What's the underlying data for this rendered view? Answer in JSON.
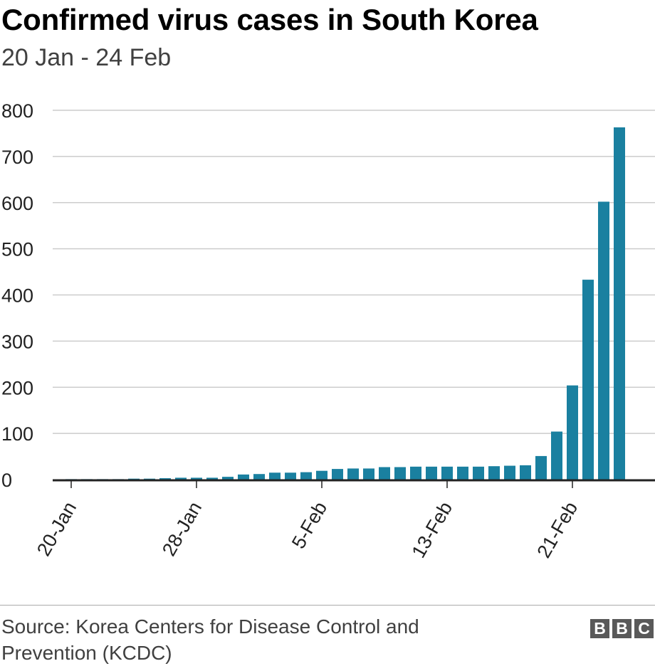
{
  "header": {
    "title": "Confirmed virus cases in South Korea",
    "subtitle": "20 Jan - 24 Feb"
  },
  "footer": {
    "source": "Source: Korea Centers for Disease Control and Prevention (KCDC)",
    "logo_letters": [
      "B",
      "B",
      "C"
    ]
  },
  "colors": {
    "bar": "#1a80a0",
    "grid": "#cccccc",
    "baseline": "#222222"
  },
  "chart_data": {
    "type": "bar",
    "title": "Confirmed virus cases in South Korea",
    "subtitle": "20 Jan - 24 Feb",
    "xlabel": "",
    "ylabel": "",
    "ylim": [
      0,
      800
    ],
    "yticks": [
      0,
      100,
      200,
      300,
      400,
      500,
      600,
      700,
      800
    ],
    "grid": true,
    "categories": [
      "20-Jan",
      "21-Jan",
      "22-Jan",
      "23-Jan",
      "24-Jan",
      "25-Jan",
      "26-Jan",
      "27-Jan",
      "28-Jan",
      "29-Jan",
      "30-Jan",
      "31-Jan",
      "1-Feb",
      "2-Feb",
      "3-Feb",
      "4-Feb",
      "5-Feb",
      "6-Feb",
      "7-Feb",
      "8-Feb",
      "9-Feb",
      "10-Feb",
      "11-Feb",
      "12-Feb",
      "13-Feb",
      "14-Feb",
      "15-Feb",
      "16-Feb",
      "17-Feb",
      "18-Feb",
      "19-Feb",
      "20-Feb",
      "21-Feb",
      "22-Feb",
      "23-Feb",
      "24-Feb"
    ],
    "values": [
      1,
      1,
      1,
      1,
      2,
      2,
      3,
      4,
      4,
      4,
      6,
      11,
      12,
      15,
      15,
      16,
      19,
      23,
      24,
      24,
      27,
      27,
      28,
      28,
      28,
      28,
      28,
      29,
      30,
      31,
      51,
      104,
      204,
      433,
      602,
      763
    ],
    "xtick_labels": [
      {
        "index": 0,
        "label": "20-Jan"
      },
      {
        "index": 8,
        "label": "28-Jan"
      },
      {
        "index": 16,
        "label": "5-Feb"
      },
      {
        "index": 24,
        "label": "13-Feb"
      },
      {
        "index": 32,
        "label": "21-Feb"
      }
    ]
  }
}
